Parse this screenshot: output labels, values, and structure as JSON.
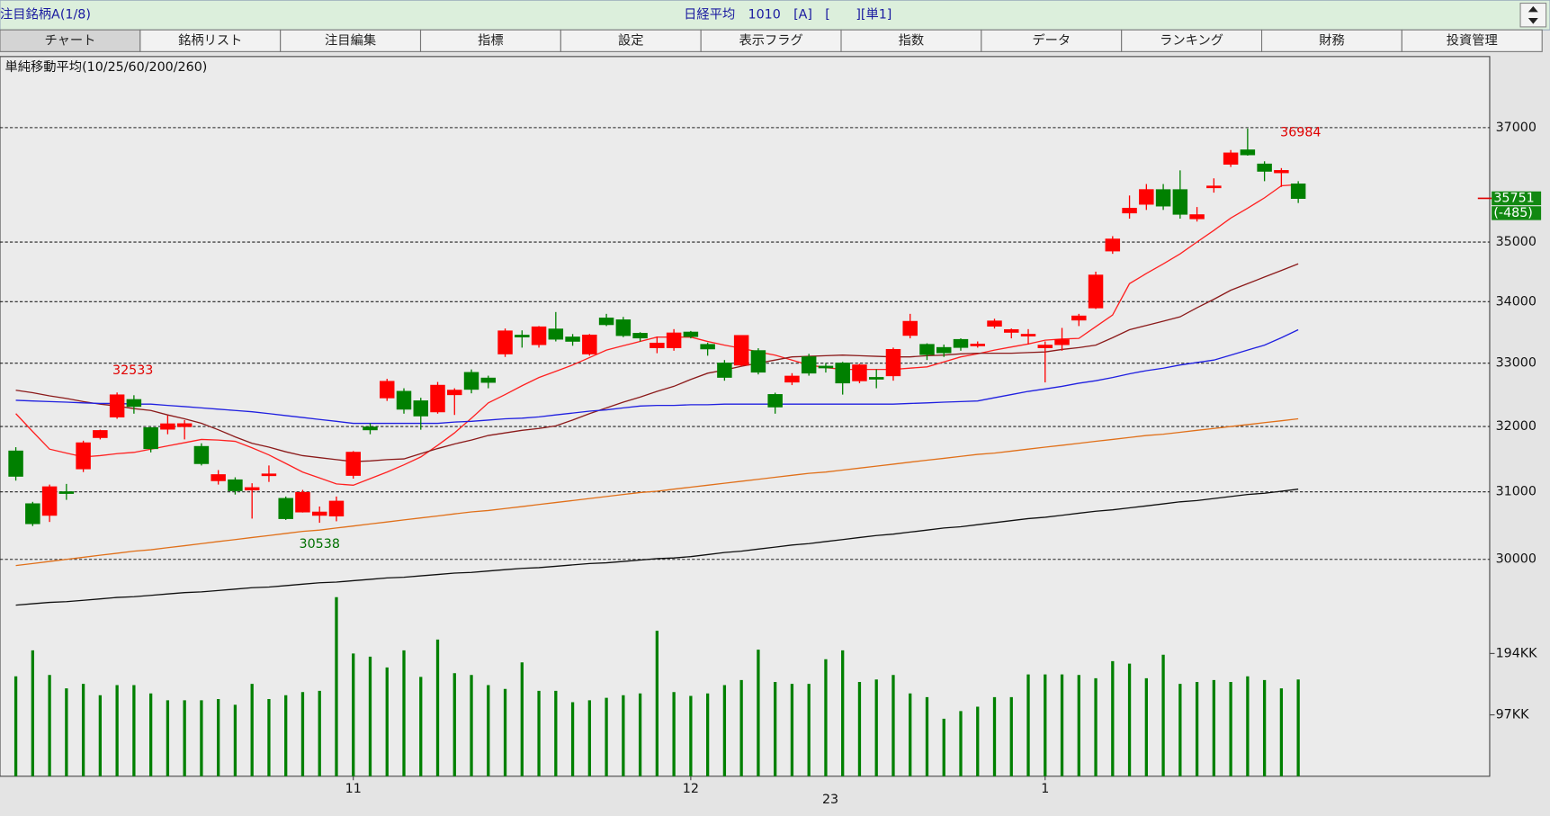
{
  "header": {
    "list_label": "注目銘柄A(1/8)",
    "instrument": "日経平均　1010　[A]　[　　][単1]"
  },
  "tabs": [
    "チャート",
    "銘柄リスト",
    "注目編集",
    "指標",
    "設定",
    "表示フラグ",
    "指数",
    "データ",
    "ランキング",
    "財務",
    "投資管理"
  ],
  "chart_data": {
    "type": "candlestick",
    "title": "単純移動平均(10/25/60/200/260)",
    "categories": [
      null,
      null,
      null,
      null,
      null,
      null,
      null,
      null,
      null,
      null,
      null,
      null,
      null,
      null,
      null,
      null,
      null,
      null,
      null,
      null,
      "11",
      null,
      null,
      null,
      null,
      null,
      null,
      null,
      null,
      null,
      null,
      null,
      null,
      null,
      null,
      null,
      null,
      null,
      null,
      null,
      "12",
      null,
      null,
      null,
      null,
      null,
      null,
      null,
      null,
      null,
      null,
      null,
      null,
      null,
      null,
      null,
      null,
      null,
      null,
      null,
      null,
      "1",
      null,
      null,
      null,
      null,
      null,
      null,
      null,
      null,
      null,
      null,
      null,
      null,
      null,
      null,
      null
    ],
    "x_sublabel": "23",
    "open": [
      31620,
      30820,
      30650,
      31000,
      31350,
      31830,
      32150,
      32420,
      31980,
      31960,
      32000,
      31690,
      31170,
      31180,
      31030,
      31250,
      30900,
      30700,
      30650,
      30640,
      31250,
      31990,
      32450,
      32550,
      32400,
      32230,
      32500,
      32850,
      32760,
      33150,
      33450,
      33300,
      33550,
      33420,
      33150,
      33730,
      33700,
      33480,
      33250,
      33250,
      33500,
      33300,
      33000,
      32970,
      33200,
      32500,
      32700,
      33100,
      32950,
      33000,
      32720,
      32770,
      32800,
      33450,
      33300,
      33250,
      33380,
      33300,
      33600,
      33500,
      33450,
      33250,
      33300,
      33700,
      33900,
      34850,
      35500,
      35650,
      35900,
      35900,
      35400,
      35950,
      36350,
      36600,
      36350,
      36200,
      36000
    ],
    "high": [
      31680,
      30850,
      31110,
      31120,
      31780,
      31950,
      32533,
      32490,
      31990,
      32170,
      32100,
      31740,
      31330,
      31220,
      31130,
      31400,
      30930,
      31030,
      30780,
      30930,
      31620,
      32050,
      32750,
      32600,
      32450,
      32700,
      32600,
      32900,
      32800,
      33560,
      33530,
      33600,
      33830,
      33470,
      33470,
      33800,
      33750,
      33500,
      33430,
      33550,
      33520,
      33330,
      33050,
      33452,
      33240,
      32530,
      32840,
      33150,
      33000,
      33020,
      32990,
      32900,
      33250,
      33800,
      33320,
      33300,
      33400,
      33350,
      33720,
      33560,
      33550,
      33350,
      33570,
      33800,
      34500,
      35100,
      35800,
      36000,
      36000,
      36240,
      35600,
      36100,
      36600,
      36984,
      36400,
      36280,
      36050
    ],
    "low": [
      31170,
      30490,
      30550,
      30880,
      31300,
      31800,
      32120,
      32200,
      31600,
      31880,
      31800,
      31400,
      31110,
      30960,
      30600,
      31150,
      30580,
      30690,
      30538,
      30560,
      31200,
      31880,
      32400,
      32200,
      31950,
      32200,
      32180,
      32520,
      32600,
      33100,
      33250,
      33250,
      33350,
      33280,
      33120,
      33600,
      33420,
      33350,
      33160,
      33200,
      33400,
      33120,
      32720,
      32950,
      32820,
      32200,
      32650,
      32800,
      32850,
      32500,
      32680,
      32600,
      32720,
      33400,
      33050,
      33100,
      33200,
      33250,
      33560,
      33400,
      33300,
      32693,
      33200,
      33600,
      33880,
      34800,
      35400,
      35550,
      35550,
      35400,
      35350,
      35850,
      36300,
      36500,
      36050,
      35950,
      35670
    ],
    "close": [
      31237,
      30526,
      31075,
      30994,
      31746,
      31936,
      32494,
      32315,
      31659,
      32040,
      32042,
      31430,
      31259,
      31019,
      31062,
      31269,
      30601,
      30991,
      30696,
      30859,
      31601,
      31950,
      32708,
      32272,
      32166,
      32646,
      32568,
      32585,
      32695,
      33519,
      33424,
      33585,
      33388,
      33354,
      33452,
      33625,
      33447,
      33408,
      33321,
      33486,
      33431,
      33231,
      32775,
      33445,
      32858,
      32307,
      32791,
      32843,
      32926,
      32686,
      32970,
      32758,
      33219,
      33675,
      33140,
      33169,
      33255,
      33305,
      33681,
      33540,
      33464,
      33288,
      33377,
      33763,
      34441,
      35049,
      35577,
      35901,
      35619,
      35477,
      35466,
      35963,
      36546,
      36517,
      36226,
      36236,
      35751
    ],
    "up_color": "#ff0000",
    "down_color": "#008000",
    "moving_averages": [
      {
        "color": "#ff2020",
        "values": [
          32200,
          31920,
          31650,
          31590,
          31530,
          31550,
          31580,
          31600,
          31650,
          31700,
          31750,
          31800,
          31790,
          31770,
          31670,
          31560,
          31430,
          31300,
          31210,
          31120,
          31100,
          31200,
          31300,
          31410,
          31530,
          31710,
          31900,
          32130,
          32370,
          32500,
          32640,
          32770,
          32870,
          32970,
          33090,
          33210,
          33280,
          33350,
          33420,
          33420,
          33420,
          33350,
          33290,
          33240,
          33180,
          33130,
          33050,
          32970,
          32930,
          32900,
          32900,
          32900,
          32900,
          32920,
          32940,
          33020,
          33100,
          33150,
          33210,
          33260,
          33310,
          33370,
          33390,
          33400,
          33590,
          33780,
          34300,
          34470,
          34630,
          34800,
          35000,
          35200,
          35410,
          35580,
          35760,
          35970,
          35990
        ]
      },
      {
        "color": "#8b1a1a",
        "values": [
          32570,
          32530,
          32480,
          32440,
          32390,
          32350,
          32320,
          32280,
          32250,
          32180,
          32120,
          32050,
          31950,
          31840,
          31740,
          31680,
          31610,
          31550,
          31520,
          31490,
          31460,
          31470,
          31490,
          31500,
          31580,
          31660,
          31730,
          31790,
          31860,
          31900,
          31940,
          31970,
          32010,
          32100,
          32200,
          32290,
          32380,
          32460,
          32550,
          32630,
          32740,
          32840,
          32890,
          32950,
          33000,
          33050,
          33100,
          33110,
          33120,
          33130,
          33120,
          33110,
          33100,
          33100,
          33120,
          33130,
          33150,
          33160,
          33160,
          33160,
          33170,
          33180,
          33220,
          33250,
          33290,
          33410,
          33540,
          33610,
          33680,
          33750,
          33900,
          34040,
          34190,
          34300,
          34410,
          34520,
          34630
        ]
      },
      {
        "color": "#2020e0",
        "values": [
          32410,
          32400,
          32390,
          32380,
          32370,
          32360,
          32360,
          32350,
          32350,
          32330,
          32310,
          32290,
          32270,
          32250,
          32230,
          32200,
          32170,
          32140,
          32110,
          32080,
          32050,
          32050,
          32050,
          32050,
          32050,
          32050,
          32070,
          32080,
          32100,
          32120,
          32130,
          32150,
          32180,
          32210,
          32240,
          32260,
          32290,
          32320,
          32330,
          32330,
          32340,
          32340,
          32350,
          32350,
          32350,
          32350,
          32350,
          32350,
          32350,
          32350,
          32350,
          32350,
          32350,
          32360,
          32370,
          32380,
          32390,
          32400,
          32450,
          32500,
          32550,
          32590,
          32630,
          32680,
          32720,
          32770,
          32830,
          32880,
          32920,
          32970,
          33010,
          33050,
          33130,
          33210,
          33290,
          33410,
          33540
        ]
      },
      {
        "color": "#e0701a",
        "values": [
          29910,
          29940,
          29970,
          30000,
          30030,
          30060,
          30090,
          30120,
          30140,
          30170,
          30200,
          30230,
          30260,
          30290,
          30320,
          30350,
          30380,
          30410,
          30430,
          30460,
          30490,
          30520,
          30550,
          30580,
          30610,
          30640,
          30670,
          30700,
          30720,
          30750,
          30780,
          30810,
          30840,
          30870,
          30900,
          30930,
          30960,
          30990,
          31010,
          31040,
          31070,
          31100,
          31130,
          31160,
          31190,
          31220,
          31250,
          31280,
          31300,
          31330,
          31360,
          31390,
          31420,
          31450,
          31480,
          31510,
          31540,
          31570,
          31590,
          31620,
          31650,
          31680,
          31710,
          31740,
          31770,
          31800,
          31830,
          31860,
          31880,
          31910,
          31940,
          31970,
          32000,
          32030,
          32060,
          32090,
          32120
        ]
      },
      {
        "color": "#101010",
        "values": [
          29340,
          29360,
          29380,
          29390,
          29410,
          29430,
          29450,
          29460,
          29480,
          29500,
          29520,
          29530,
          29550,
          29570,
          29590,
          29600,
          29620,
          29640,
          29660,
          29670,
          29690,
          29710,
          29730,
          29740,
          29760,
          29780,
          29800,
          29810,
          29830,
          29850,
          29870,
          29880,
          29900,
          29920,
          29940,
          29950,
          29970,
          29990,
          30010,
          30020,
          30040,
          30070,
          30100,
          30120,
          30150,
          30180,
          30210,
          30230,
          30260,
          30290,
          30320,
          30350,
          30370,
          30400,
          30430,
          30460,
          30480,
          30510,
          30540,
          30570,
          30600,
          30620,
          30650,
          30680,
          30710,
          30730,
          30760,
          30790,
          30820,
          30850,
          30870,
          30900,
          30930,
          30960,
          30980,
          31010,
          31040
        ]
      }
    ],
    "log_scale": true,
    "grid": true,
    "ylim": [
      27000,
      38300
    ],
    "yticks": [
      30000,
      31000,
      32000,
      33000,
      34000,
      35000,
      37000
    ],
    "price_annotations": {
      "period_high": 32533,
      "period_low": 30538,
      "recent_high": 36984,
      "last_price": 35751,
      "change": "(-485)"
    },
    "volume": {
      "color": "#008000",
      "values": [
        158,
        199,
        160,
        139,
        146,
        128,
        144,
        144,
        131,
        120,
        120,
        120,
        122,
        113,
        146,
        122,
        128,
        133,
        135,
        283,
        194,
        189,
        172,
        199,
        157,
        216,
        163,
        160,
        144,
        138,
        180,
        135,
        135,
        117,
        120,
        124,
        128,
        131,
        230,
        133,
        127,
        131,
        144,
        152,
        200,
        149,
        146,
        146,
        185,
        199,
        149,
        153,
        160,
        131,
        125,
        91,
        103,
        110,
        125,
        125,
        161,
        161,
        161,
        160,
        155,
        182,
        178,
        155,
        192,
        146,
        149,
        152,
        149,
        158,
        152,
        139,
        153
      ],
      "ylim": [
        0,
        300
      ],
      "yticks": [
        {
          "value": 97,
          "label": "97KK"
        },
        {
          "value": 194,
          "label": "194KK"
        }
      ]
    }
  }
}
